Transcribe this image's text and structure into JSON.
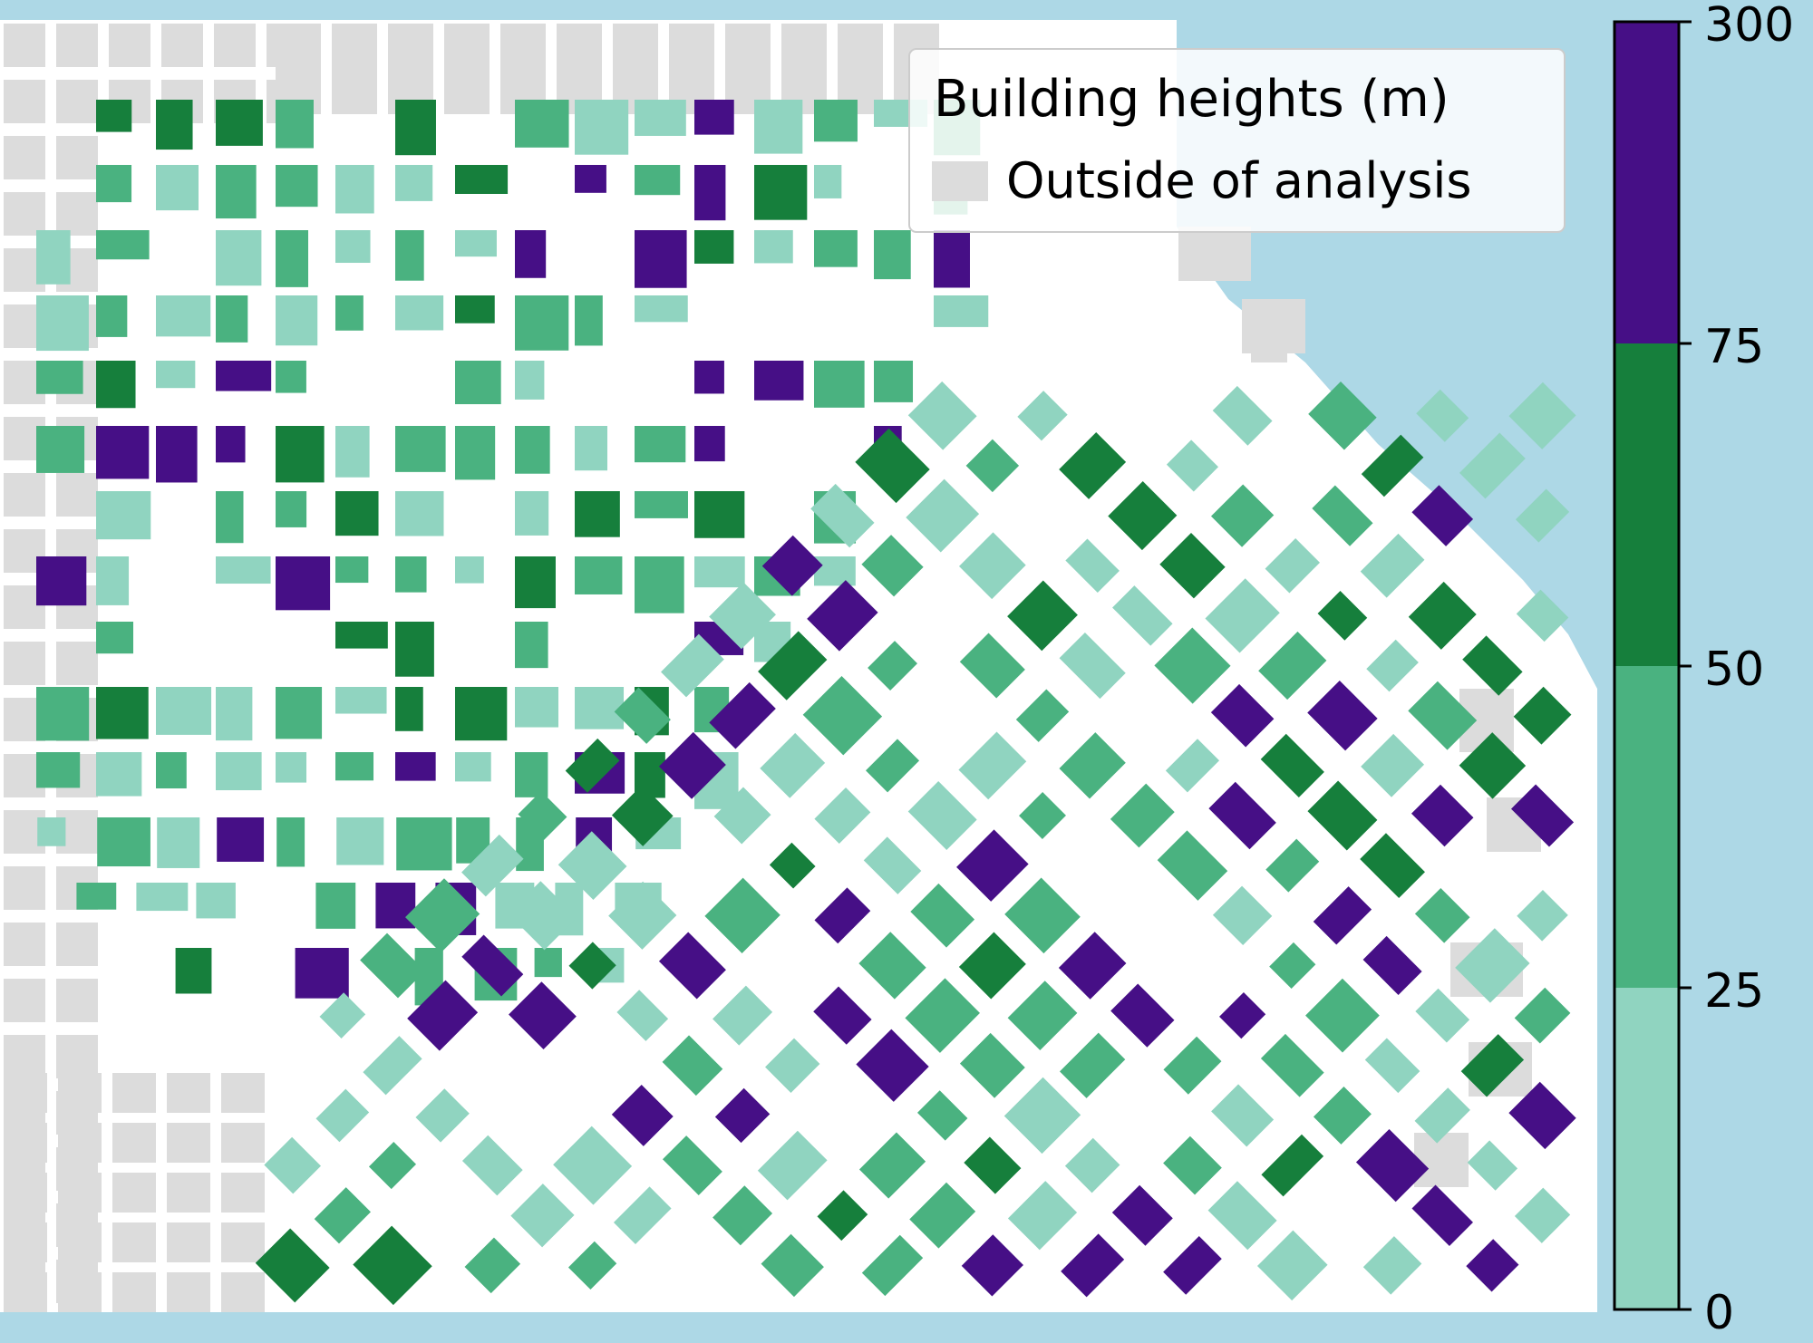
{
  "legend": {
    "title": "Building heights (m)",
    "outside_label": "Outside of analysis"
  },
  "colorbar": {
    "ticks": [
      "0",
      "25",
      "50",
      "75",
      "300"
    ],
    "bins": [
      {
        "from": 0,
        "to": 25,
        "color": "#90d4c0"
      },
      {
        "from": 25,
        "to": 50,
        "color": "#4ab280"
      },
      {
        "from": 50,
        "to": 75,
        "color": "#167f3c"
      },
      {
        "from": 75,
        "to": 300,
        "color": "#460f86"
      }
    ]
  },
  "colors": {
    "water": "#add8e6",
    "land": "#ffffff",
    "outside": "#dcdcdc",
    "h0_25": "#90d4c0",
    "h25_50": "#4ab280",
    "h50_75": "#167f3c",
    "h75_300": "#460f86"
  }
}
